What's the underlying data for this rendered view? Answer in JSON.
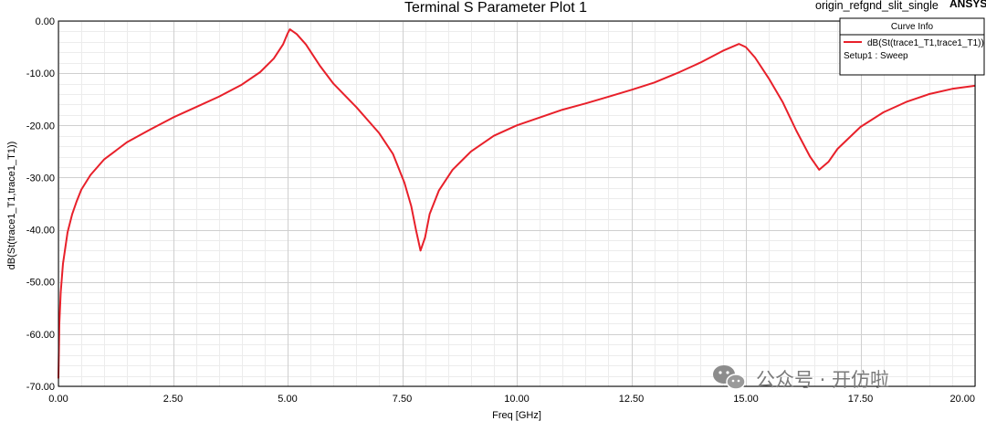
{
  "app": {
    "project_name": "origin_refgnd_slit_single",
    "brand": "ANSYS"
  },
  "watermark": {
    "text": "公众号 · 开仿啦",
    "icon": "wechat-icon"
  },
  "chart_data": {
    "type": "line",
    "title": "Terminal S Parameter Plot 1",
    "xlabel": "Freq [GHz]",
    "ylabel": "dB(St(trace1_T1,trace1_T1))",
    "xlim": [
      0,
      20
    ],
    "ylim": [
      -70,
      0
    ],
    "x_ticks": [
      "0.00",
      "2.50",
      "5.00",
      "7.50",
      "10.00",
      "12.50",
      "15.00",
      "17.50",
      "20.00"
    ],
    "y_ticks": [
      "0.00",
      "-10.00",
      "-20.00",
      "-30.00",
      "-40.00",
      "-50.00",
      "-60.00",
      "-70.00"
    ],
    "grid": true,
    "legend": {
      "title": "Curve Info",
      "placement": "top-right",
      "entries": [
        "dB(St(trace1_T1,trace1_T1))"
      ],
      "subtitle": "Setup1 : Sweep"
    },
    "series": [
      {
        "name": "dB(St(trace1_T1,trace1_T1))",
        "color": "#e8202a",
        "points": [
          [
            0.0,
            -68.5
          ],
          [
            0.02,
            -58.0
          ],
          [
            0.05,
            -52.0
          ],
          [
            0.1,
            -46.5
          ],
          [
            0.2,
            -40.5
          ],
          [
            0.3,
            -37.0
          ],
          [
            0.4,
            -34.5
          ],
          [
            0.5,
            -32.3
          ],
          [
            0.7,
            -29.5
          ],
          [
            1.0,
            -26.5
          ],
          [
            1.5,
            -23.2
          ],
          [
            2.0,
            -20.8
          ],
          [
            2.5,
            -18.5
          ],
          [
            3.0,
            -16.5
          ],
          [
            3.5,
            -14.5
          ],
          [
            4.0,
            -12.2
          ],
          [
            4.4,
            -9.8
          ],
          [
            4.7,
            -7.2
          ],
          [
            4.9,
            -4.5
          ],
          [
            5.0,
            -2.4
          ],
          [
            5.05,
            -1.6
          ],
          [
            5.2,
            -2.5
          ],
          [
            5.4,
            -4.5
          ],
          [
            5.7,
            -8.5
          ],
          [
            6.0,
            -12.0
          ],
          [
            6.5,
            -16.5
          ],
          [
            7.0,
            -21.5
          ],
          [
            7.3,
            -25.5
          ],
          [
            7.55,
            -31.0
          ],
          [
            7.7,
            -35.5
          ],
          [
            7.8,
            -40.0
          ],
          [
            7.9,
            -44.0
          ],
          [
            8.0,
            -41.5
          ],
          [
            8.1,
            -37.0
          ],
          [
            8.3,
            -32.5
          ],
          [
            8.6,
            -28.5
          ],
          [
            9.0,
            -25.0
          ],
          [
            9.5,
            -22.0
          ],
          [
            10.0,
            -20.0
          ],
          [
            10.5,
            -18.5
          ],
          [
            11.0,
            -17.0
          ],
          [
            11.5,
            -15.8
          ],
          [
            12.0,
            -14.5
          ],
          [
            12.5,
            -13.2
          ],
          [
            13.0,
            -11.8
          ],
          [
            13.5,
            -10.0
          ],
          [
            14.0,
            -8.0
          ],
          [
            14.5,
            -5.7
          ],
          [
            14.85,
            -4.4
          ],
          [
            15.0,
            -5.0
          ],
          [
            15.2,
            -7.0
          ],
          [
            15.5,
            -11.0
          ],
          [
            15.8,
            -15.5
          ],
          [
            16.1,
            -21.0
          ],
          [
            16.4,
            -26.0
          ],
          [
            16.6,
            -28.5
          ],
          [
            16.8,
            -27.0
          ],
          [
            17.0,
            -24.5
          ],
          [
            17.5,
            -20.3
          ],
          [
            18.0,
            -17.5
          ],
          [
            18.5,
            -15.5
          ],
          [
            19.0,
            -14.0
          ],
          [
            19.5,
            -13.0
          ],
          [
            20.0,
            -12.4
          ]
        ]
      }
    ]
  }
}
